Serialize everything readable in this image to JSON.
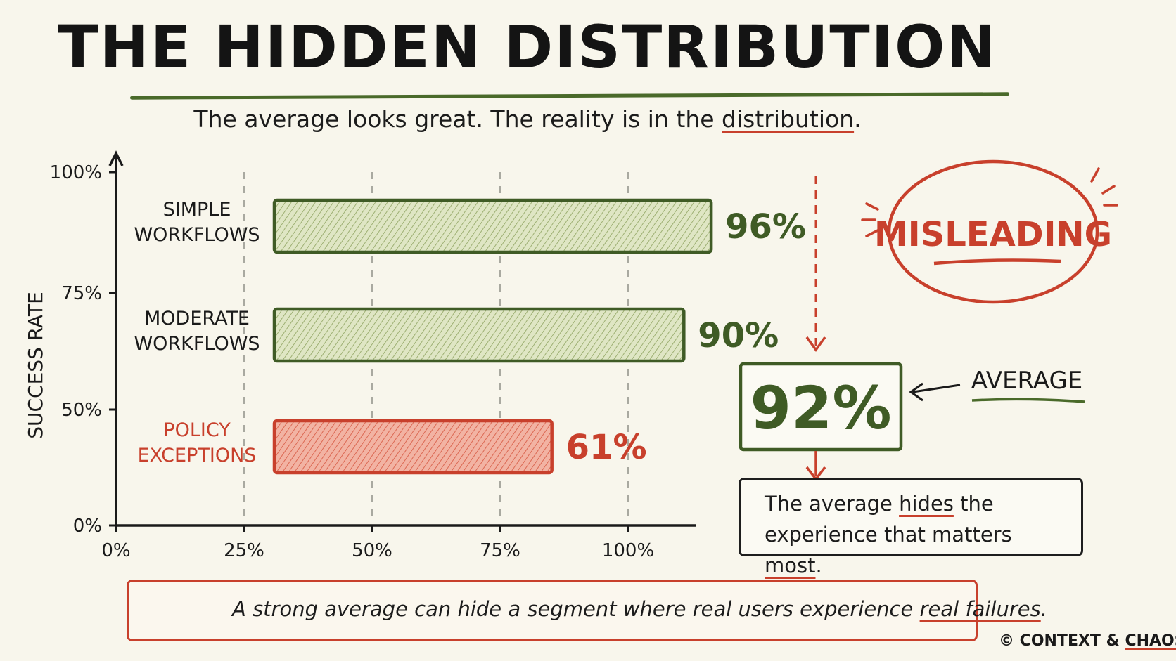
{
  "header": {
    "title": "THE HIDDEN DISTRIBUTION",
    "subtitle_before": "The average looks great. The reality is in the ",
    "subtitle_highlight": "distribution",
    "subtitle_after": "."
  },
  "chart_data": {
    "type": "bar",
    "orientation": "horizontal",
    "categories": [
      "SIMPLE WORKFLOWS",
      "MODERATE WORKFLOWS",
      "POLICY EXCEPTIONS"
    ],
    "category_lines": [
      [
        "SIMPLE",
        "WORKFLOWS"
      ],
      [
        "MODERATE",
        "WORKFLOWS"
      ],
      [
        "POLICY",
        "EXCEPTIONS"
      ]
    ],
    "values": [
      96,
      90,
      61
    ],
    "value_labels": [
      "96%",
      "90%",
      "61%"
    ],
    "highlight_category": "POLICY EXCEPTIONS",
    "ylabel": "SUCCESS RATE",
    "y_tick_labels": [
      "100%",
      "75%",
      "50%",
      "0%"
    ],
    "x_tick_labels": [
      "0%",
      "25%",
      "50%",
      "75%",
      "100%"
    ],
    "grid": "dashed vertical",
    "colors": {
      "normal": "#5b7a2e",
      "normal_fill": "#d6dfb8",
      "highlight": "#c8402c",
      "highlight_fill": "#f0a796"
    }
  },
  "annotations": {
    "misleading_label": "MISLEADING",
    "average_value": "92%",
    "average_label": "AVERAGE",
    "callout_line1_before": "The average ",
    "callout_line1_highlight": "hides",
    "callout_line1_after": " the",
    "callout_line2_before": "experience that matters ",
    "callout_line2_highlight": "most",
    "callout_line2_after": "."
  },
  "footer": {
    "warning_before": "A strong average can hide a segment where real users experience ",
    "warning_highlight": "real failures",
    "warning_after": ".",
    "credit_symbol": "©",
    "credit_before": "CONTEXT & ",
    "credit_highlight": "CHAOS"
  },
  "icons": {
    "warning": "warning-triangle-icon"
  }
}
